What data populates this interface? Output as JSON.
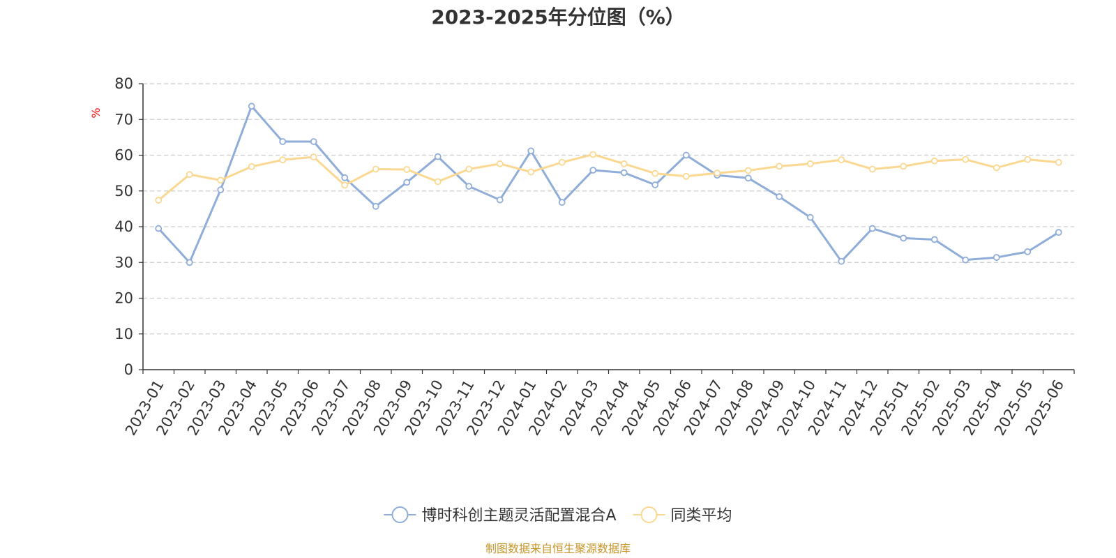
{
  "chart_data": {
    "type": "line",
    "title": "2023-2025年分位图（%）",
    "ylabel": "%",
    "ylim": [
      0,
      80
    ],
    "yticks": [
      "0",
      "10",
      "20",
      "30",
      "40",
      "50",
      "60",
      "70",
      "80"
    ],
    "grid": true,
    "legend_position": "bottom-center",
    "categories": [
      "2023-01",
      "2023-02",
      "2023-03",
      "2023-04",
      "2023-05",
      "2023-06",
      "2023-07",
      "2023-08",
      "2023-09",
      "2023-10",
      "2023-11",
      "2023-12",
      "2024-01",
      "2024-02",
      "2024-03",
      "2024-04",
      "2024-05",
      "2024-06",
      "2024-07",
      "2024-08",
      "2024-09",
      "2024-10",
      "2024-11",
      "2024-12",
      "2025-01",
      "2025-02",
      "2025-03",
      "2025-04",
      "2025-05",
      "2025-06"
    ],
    "series": [
      {
        "name": "博时科创主题灵活配置混合A",
        "color": "#8fadd8",
        "values": [
          39.5,
          30.0,
          50.3,
          73.7,
          63.8,
          63.8,
          53.7,
          45.7,
          52.4,
          59.6,
          51.3,
          47.5,
          61.2,
          46.8,
          55.8,
          55.1,
          51.7,
          60.0,
          54.4,
          53.6,
          48.4,
          42.6,
          30.3,
          39.5,
          36.8,
          36.4,
          30.7,
          31.4,
          33.0,
          38.4
        ]
      },
      {
        "name": "同类平均",
        "color": "#fad891",
        "values": [
          47.4,
          54.6,
          53.0,
          56.8,
          58.7,
          59.5,
          51.6,
          56.1,
          56.0,
          52.6,
          56.1,
          57.6,
          55.3,
          58.0,
          60.2,
          57.6,
          54.9,
          54.1,
          55.0,
          55.7,
          56.9,
          57.6,
          58.7,
          56.1,
          56.9,
          58.4,
          58.8,
          56.5,
          58.8,
          58.0
        ]
      }
    ]
  },
  "footer": {
    "source": "制图数据来自恒生聚源数据库"
  }
}
